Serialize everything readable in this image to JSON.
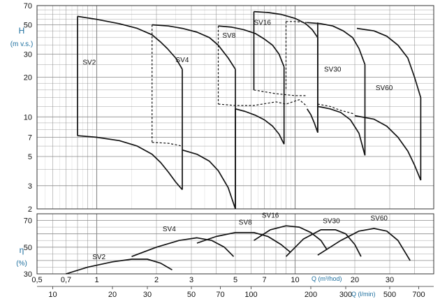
{
  "chart_data": {
    "type": "line",
    "colors": {
      "axis_text": "#1c6e9e",
      "ink": "#111111",
      "grid": "#8a8a8a"
    },
    "head_chart": {
      "ylabel": "H",
      "yunit": "(m v.s.)",
      "yscale": "log",
      "ylim": [
        2,
        70
      ],
      "yticks": [
        2,
        3,
        5,
        7,
        10,
        20,
        30,
        50,
        70
      ],
      "ytick_labels": [
        "2",
        "3",
        "5",
        "7",
        "10",
        "20",
        "30",
        "50",
        "70"
      ],
      "series": [
        {
          "name": "SV2",
          "label_at": [
            0.85,
            25
          ],
          "upper": [
            [
              0.8,
              58
            ],
            [
              1.0,
              55
            ],
            [
              1.3,
              51
            ],
            [
              1.6,
              47
            ],
            [
              1.9,
              42
            ],
            [
              2.1,
              37
            ],
            [
              2.27,
              33
            ],
            [
              2.5,
              28
            ],
            [
              2.7,
              23
            ]
          ],
          "lower": [
            [
              0.8,
              7.2
            ],
            [
              1.0,
              7.0
            ],
            [
              1.3,
              6.6
            ],
            [
              1.6,
              6.0
            ],
            [
              1.9,
              5.2
            ],
            [
              2.1,
              4.5
            ],
            [
              2.3,
              3.8
            ],
            [
              2.5,
              3.2
            ],
            [
              2.7,
              2.8
            ]
          ],
          "bounds": [
            [
              [
                0.8,
                7.2
              ],
              [
                0.8,
                58
              ]
            ],
            [
              [
                2.7,
                2.8
              ],
              [
                2.7,
                23
              ]
            ]
          ]
        },
        {
          "name": "SV4",
          "label_at": [
            2.5,
            26
          ],
          "upper": [
            [
              1.9,
              50
            ],
            [
              2.3,
              49
            ],
            [
              2.7,
              47
            ],
            [
              3.2,
              44
            ],
            [
              3.7,
              40
            ],
            [
              4.1,
              35
            ],
            [
              4.6,
              28
            ],
            [
              5.0,
              23
            ]
          ],
          "lower": [
            [
              2.7,
              5.6
            ],
            [
              3.2,
              5.2
            ],
            [
              3.7,
              4.6
            ],
            [
              4.1,
              3.9
            ],
            [
              4.6,
              2.9
            ],
            [
              5.0,
              2.0
            ]
          ],
          "bounds": [
            [
              [
                5.0,
                2.0
              ],
              [
                5.0,
                23
              ]
            ]
          ]
        },
        {
          "name": "SV8",
          "label_at": [
            4.3,
            40
          ],
          "upper": [
            [
              4.1,
              49
            ],
            [
              4.8,
              48
            ],
            [
              5.5,
              46
            ],
            [
              6.3,
              43
            ],
            [
              7.0,
              39
            ],
            [
              7.7,
              35
            ],
            [
              8.3,
              30
            ],
            [
              8.8,
              24
            ]
          ],
          "lower": [
            [
              5.0,
              11.5
            ],
            [
              5.6,
              11.0
            ],
            [
              6.3,
              10.3
            ],
            [
              7.0,
              9.5
            ],
            [
              7.7,
              8.5
            ],
            [
              8.3,
              7.4
            ],
            [
              8.8,
              6.2
            ]
          ],
          "bounds": [
            [
              [
                5.0,
                2.0
              ],
              [
                5.0,
                11.5
              ]
            ],
            [
              [
                8.8,
                6.2
              ],
              [
                8.8,
                24
              ]
            ]
          ]
        },
        {
          "name": "SV16",
          "label_at": [
            6.2,
            50
          ],
          "upper": [
            [
              6.2,
              63
            ],
            [
              7.3,
              62
            ],
            [
              8.5,
              60
            ],
            [
              10.0,
              56
            ],
            [
              11.3,
              51
            ],
            [
              12.2,
              46
            ],
            [
              13.0,
              40
            ]
          ],
          "lower": [
            [
              11.5,
              11.5
            ],
            [
              12.0,
              10.4
            ],
            [
              12.5,
              9.0
            ],
            [
              13.0,
              7.6
            ]
          ],
          "bounds": [
            [
              [
                6.2,
                16
              ],
              [
                6.2,
                63
              ]
            ],
            [
              [
                13.0,
                7.6
              ],
              [
                13.0,
                40
              ]
            ]
          ]
        },
        {
          "name": "SV30",
          "label_at": [
            14.0,
            22
          ],
          "upper": [
            [
              11.5,
              52
            ],
            [
              13.5,
              51
            ],
            [
              15.5,
              49
            ],
            [
              17.5,
              45
            ],
            [
              19.5,
              40
            ],
            [
              21.0,
              33
            ],
            [
              22.5,
              25
            ]
          ],
          "lower": [
            [
              13.0,
              12.0
            ],
            [
              15.0,
              11.5
            ],
            [
              17.0,
              10.8
            ],
            [
              19.0,
              9.5
            ],
            [
              21.0,
              7.5
            ],
            [
              22.5,
              5.1
            ]
          ],
          "bounds": [
            [
              [
                13.0,
                7.6
              ],
              [
                13.0,
                52
              ]
            ],
            [
              [
                22.5,
                5.1
              ],
              [
                22.5,
                25
              ]
            ]
          ]
        },
        {
          "name": "SV60",
          "label_at": [
            25.5,
            16
          ],
          "upper": [
            [
              20.5,
              47
            ],
            [
              25.0,
              45
            ],
            [
              29.0,
              41
            ],
            [
              33.0,
              35
            ],
            [
              37.0,
              28
            ],
            [
              40.0,
              20
            ],
            [
              43.0,
              14
            ]
          ],
          "lower": [
            [
              20.0,
              10.2
            ],
            [
              25.0,
              9.6
            ],
            [
              29.0,
              8.5
            ],
            [
              33.0,
              7.0
            ],
            [
              37.0,
              5.5
            ],
            [
              40.0,
              4.3
            ],
            [
              43.0,
              3.3
            ]
          ],
          "bounds": [
            [
              [
                43.0,
                3.3
              ],
              [
                43.0,
                14
              ]
            ]
          ]
        }
      ],
      "dashed": [
        [
          [
            1.9,
            6.4
          ],
          [
            2.3,
            6.3
          ],
          [
            2.7,
            6.0
          ]
        ],
        [
          [
            1.9,
            50
          ],
          [
            1.9,
            6.4
          ]
        ],
        [
          [
            4.1,
            12.5
          ],
          [
            5.0,
            12.2
          ],
          [
            6.2,
            12.2
          ],
          [
            8.0,
            13.0
          ],
          [
            9.0,
            12.5
          ],
          [
            10.5,
            13.5
          ],
          [
            11.5,
            12.0
          ]
        ],
        [
          [
            4.1,
            49
          ],
          [
            4.1,
            12.5
          ]
        ],
        [
          [
            6.2,
            16
          ],
          [
            8.0,
            15.0
          ],
          [
            10.0,
            14.5
          ],
          [
            11.5,
            14.5
          ]
        ],
        [
          [
            9.0,
            53
          ],
          [
            9.0,
            16
          ]
        ],
        [
          [
            9.0,
            53
          ],
          [
            10.0,
            53
          ],
          [
            11.5,
            52
          ]
        ],
        [
          [
            13.0,
            12.5
          ],
          [
            15.0,
            12.0
          ],
          [
            17.0,
            11.2
          ],
          [
            20.0,
            10.5
          ]
        ]
      ]
    },
    "efficiency_chart": {
      "ylabel": "η",
      "yunit": "(%)",
      "ylim": [
        30,
        75
      ],
      "yticks": [
        30,
        50,
        70
      ],
      "ytick_labels": [
        "30",
        "50",
        "70"
      ],
      "series": [
        {
          "name": "SV2",
          "label_at": [
            0.95,
            41
          ],
          "values": [
            [
              0.7,
              30
            ],
            [
              0.9,
              35
            ],
            [
              1.2,
              39
            ],
            [
              1.5,
              41
            ],
            [
              1.8,
              41
            ],
            [
              2.1,
              38
            ],
            [
              2.4,
              33
            ]
          ]
        },
        {
          "name": "SV4",
          "label_at": [
            2.15,
            62
          ],
          "values": [
            [
              1.5,
              43
            ],
            [
              2.0,
              50
            ],
            [
              2.6,
              55
            ],
            [
              3.2,
              57
            ],
            [
              3.8,
              55
            ],
            [
              4.4,
              50
            ],
            [
              4.9,
              43
            ]
          ]
        },
        {
          "name": "SV8",
          "label_at": [
            5.2,
            67
          ],
          "values": [
            [
              3.2,
              53
            ],
            [
              4.0,
              58
            ],
            [
              5.0,
              61
            ],
            [
              6.2,
              61
            ],
            [
              7.3,
              58
            ],
            [
              8.5,
              52
            ],
            [
              9.5,
              46
            ]
          ]
        },
        {
          "name": "SV16",
          "label_at": [
            6.8,
            72
          ],
          "values": [
            [
              6.2,
              55
            ],
            [
              7.5,
              63
            ],
            [
              9.0,
              66
            ],
            [
              10.5,
              65
            ],
            [
              12.0,
              61
            ],
            [
              13.5,
              55
            ],
            [
              14.5,
              48
            ]
          ]
        },
        {
          "name": "SV30",
          "label_at": [
            13.8,
            68
          ],
          "values": [
            [
              9.0,
              43
            ],
            [
              11.0,
              56
            ],
            [
              13.5,
              63
            ],
            [
              16.0,
              63
            ],
            [
              18.0,
              60
            ],
            [
              20.0,
              52
            ],
            [
              21.5,
              43
            ]
          ]
        },
        {
          "name": "SV60",
          "label_at": [
            24.0,
            70
          ],
          "values": [
            [
              13.0,
              44
            ],
            [
              17.0,
              55
            ],
            [
              21.0,
              62
            ],
            [
              25.0,
              64
            ],
            [
              29.0,
              62
            ],
            [
              33.0,
              55
            ],
            [
              38.0,
              40
            ]
          ]
        }
      ]
    },
    "x_axis_m3h": {
      "label": "Q (m³/hod)",
      "scale": "log",
      "range": [
        0.5,
        50
      ],
      "ticks": [
        0.5,
        0.7,
        1,
        2,
        3,
        5,
        7,
        10,
        20,
        30
      ],
      "tick_labels": [
        "0,5",
        "0,7",
        "1",
        "2",
        "3",
        "5",
        "7",
        "10",
        "20",
        "30"
      ]
    },
    "x_axis_lmin": {
      "label": "Q (l/min)",
      "ticks": [
        10,
        20,
        30,
        50,
        70,
        100,
        200,
        300,
        500,
        700
      ],
      "tick_labels": [
        "10",
        "20",
        "30",
        "50",
        "70",
        "100",
        "200",
        "300",
        "500",
        "700"
      ]
    }
  }
}
